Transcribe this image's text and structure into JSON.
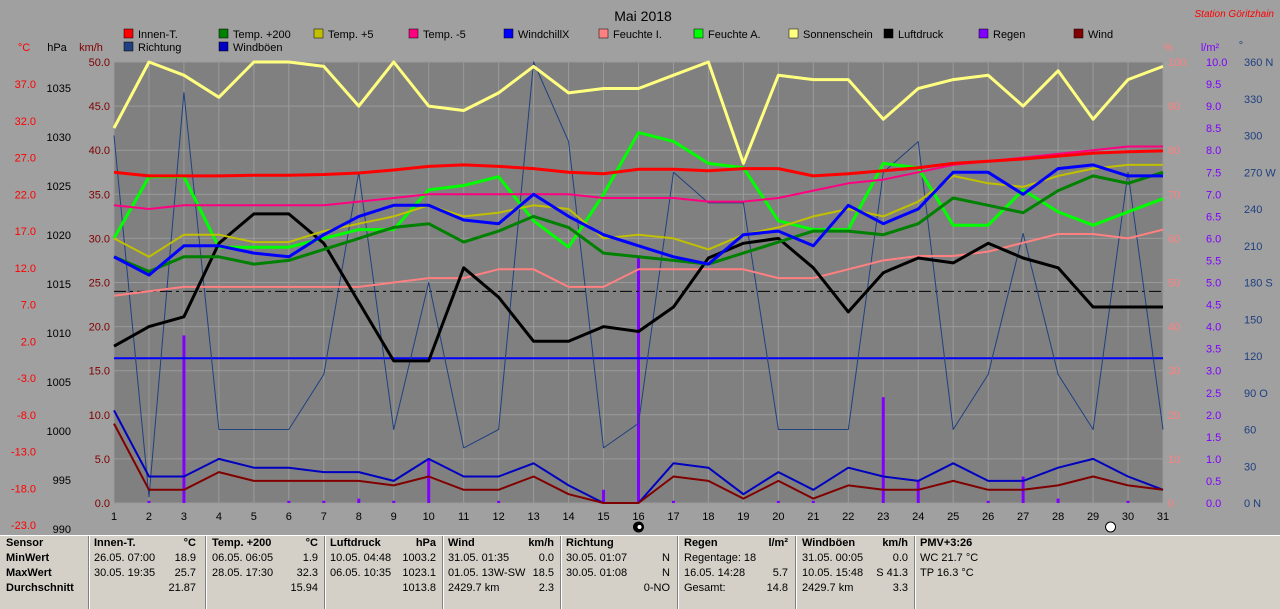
{
  "chart_data": {
    "type": "line",
    "title": "Mai 2018",
    "station": "Station Göritzhain",
    "axis_units": {
      "left_c": "°C",
      "left_hpa": "hPa",
      "left_kmh": "km/h",
      "right_pct": "%",
      "right_lm2": "l/m²",
      "right_deg": "°"
    },
    "x": [
      1,
      2,
      3,
      4,
      5,
      6,
      7,
      8,
      9,
      10,
      11,
      12,
      13,
      14,
      15,
      16,
      17,
      18,
      19,
      20,
      21,
      22,
      23,
      24,
      25,
      26,
      27,
      28,
      29,
      30,
      31
    ],
    "x_ticks": [
      "1",
      "2",
      "3",
      "4",
      "5",
      "6",
      "7",
      "8",
      "9",
      "10",
      "11",
      "12",
      "13",
      "14",
      "15",
      "16",
      "17",
      "18",
      "19",
      "20",
      "21",
      "22",
      "23",
      "24",
      "25",
      "26",
      "27",
      "28",
      "29",
      "30",
      "31"
    ],
    "temp_ticks": [
      "37.0",
      "32.0",
      "27.0",
      "22.0",
      "17.0",
      "12.0",
      "7.0",
      "2.0",
      "-3.0",
      "-8.0",
      "-13.0",
      "-18.0",
      "-23.0"
    ],
    "hpa_ticks": [
      "1035",
      "1030",
      "1025",
      "1020",
      "1015",
      "1010",
      "1005",
      "1000",
      "995",
      "990"
    ],
    "kmh_ticks": [
      "50.0",
      "45.0",
      "40.0",
      "35.0",
      "30.0",
      "25.0",
      "20.0",
      "15.0",
      "10.0",
      "5.0",
      "0.0"
    ],
    "pct_ticks": [
      "100",
      "90",
      "80",
      "70",
      "60",
      "50",
      "40",
      "30",
      "20",
      "10",
      "0"
    ],
    "rain_ticks": [
      "10.0",
      "9.5",
      "9.0",
      "8.5",
      "8.0",
      "7.5",
      "7.0",
      "6.5",
      "6.0",
      "5.5",
      "5.0",
      "4.5",
      "4.0",
      "3.5",
      "3.0",
      "2.5",
      "2.0",
      "1.5",
      "1.0",
      "0.5",
      "0.0"
    ],
    "dir_ticks": [
      "360 N",
      "330",
      "300",
      "270 W",
      "240",
      "210",
      "180 S",
      "150",
      "120",
      "90 O",
      "60",
      "30",
      "0 N"
    ],
    "ranges": {
      "temp": [
        -23,
        37
      ],
      "hpa": [
        990,
        1035
      ],
      "kmh": [
        0,
        50
      ],
      "pct": [
        0,
        100
      ],
      "rain": [
        0,
        10
      ],
      "dir": [
        0,
        360
      ]
    },
    "grid": true,
    "legend_position": "top",
    "series": [
      {
        "name": "Innen-T.",
        "key": "innen",
        "color": "#ff0000",
        "axis": "temp",
        "width": 3,
        "values": [
          22.0,
          21.5,
          21.5,
          21.5,
          21.6,
          21.6,
          21.7,
          21.9,
          22.3,
          22.8,
          23.0,
          22.8,
          22.5,
          22.0,
          21.8,
          22.4,
          22.4,
          22.2,
          22.5,
          22.5,
          21.5,
          21.8,
          22.2,
          22.6,
          23.2,
          23.5,
          23.8,
          24.2,
          24.6,
          24.8,
          24.9
        ]
      },
      {
        "name": "Temp. +200",
        "key": "t200",
        "color": "#008000",
        "axis": "temp",
        "width": 3,
        "values": [
          10.5,
          8.5,
          10.5,
          10.5,
          9.5,
          10.0,
          11.5,
          13.0,
          14.5,
          15.0,
          12.5,
          14.0,
          16.0,
          14.5,
          11.0,
          10.5,
          10.0,
          9.5,
          11.0,
          12.5,
          14.0,
          14.0,
          13.5,
          15.0,
          18.5,
          17.5,
          16.5,
          19.5,
          21.5,
          20.5,
          22.0
        ]
      },
      {
        "name": "Temp. +5",
        "key": "t5",
        "color": "#c0c000",
        "axis": "temp",
        "width": 2,
        "values": [
          13.0,
          10.5,
          13.5,
          13.5,
          12.5,
          12.5,
          14.0,
          15.0,
          16.0,
          17.5,
          16.0,
          16.5,
          17.5,
          17.0,
          13.0,
          13.5,
          13.0,
          11.5,
          13.5,
          14.5,
          16.0,
          17.0,
          16.0,
          18.0,
          21.5,
          20.5,
          20.0,
          21.5,
          22.5,
          23.0,
          23.0
        ]
      },
      {
        "name": "Temp. -5",
        "key": "tm5",
        "color": "#ff0080",
        "axis": "temp",
        "width": 2,
        "values": [
          17.5,
          17.0,
          17.5,
          17.5,
          17.5,
          17.5,
          17.5,
          18.0,
          18.5,
          19.0,
          19.0,
          19.0,
          19.0,
          19.0,
          18.5,
          18.5,
          18.5,
          18.0,
          18.0,
          18.5,
          19.5,
          20.5,
          21.0,
          22.0,
          23.0,
          23.5,
          24.0,
          24.5,
          25.0,
          25.5,
          25.5
        ]
      },
      {
        "name": "WindchillX",
        "key": "windchill",
        "color": "#0000ff",
        "axis": "temp",
        "width": 3,
        "values": [
          10.5,
          8.0,
          12.0,
          12.0,
          11.0,
          10.5,
          13.5,
          16.0,
          17.5,
          17.5,
          15.5,
          15.0,
          19.0,
          16.0,
          13.5,
          12.0,
          10.5,
          9.5,
          13.5,
          14.0,
          12.0,
          17.5,
          15.0,
          17.0,
          22.0,
          22.0,
          19.0,
          22.5,
          23.0,
          21.5,
          21.5
        ]
      },
      {
        "name": "Feuchte I.",
        "key": "feuchte_i",
        "color": "#ff8080",
        "axis": "pct",
        "width": 2,
        "values": [
          47,
          48,
          49,
          49,
          49,
          49,
          49,
          49,
          50,
          51,
          51,
          53,
          53,
          49,
          49,
          53,
          53,
          53,
          53,
          51,
          51,
          53,
          55,
          56,
          56,
          57,
          59,
          61,
          61,
          60,
          62
        ]
      },
      {
        "name": "Feuchte A.",
        "key": "feuchte_a",
        "color": "#00ff00",
        "axis": "pct",
        "width": 3,
        "values": [
          60,
          74,
          74,
          58,
          58,
          58,
          60,
          62,
          62,
          71,
          72,
          74,
          64,
          58,
          70,
          84,
          82,
          77,
          76,
          64,
          62,
          62,
          77,
          76,
          63,
          63,
          71,
          66,
          63,
          66,
          69
        ]
      },
      {
        "name": "Sonnenschein",
        "key": "sonne",
        "color": "#ffff80",
        "axis": "pct",
        "width": 3,
        "values": [
          85,
          100,
          97,
          92,
          100,
          100,
          99,
          90,
          100,
          90,
          89,
          93,
          99,
          93,
          94,
          94,
          97,
          100,
          77,
          97,
          96,
          96,
          87,
          94,
          96,
          97,
          90,
          98,
          87,
          96,
          99
        ]
      },
      {
        "name": "Luftdruck",
        "key": "luftdruck",
        "color": "#000000",
        "axis": "hpa",
        "width": 3,
        "values": [
          1006.0,
          1008.0,
          1009.0,
          1016.5,
          1019.5,
          1019.5,
          1016.5,
          1010.5,
          1004.5,
          1004.5,
          1014.0,
          1011.0,
          1006.5,
          1006.5,
          1008.0,
          1007.5,
          1010.0,
          1015.0,
          1016.5,
          1017.0,
          1014.0,
          1009.5,
          1013.5,
          1015.0,
          1014.5,
          1016.5,
          1015.0,
          1014.0,
          1010.0,
          1010.0,
          1010.0
        ]
      },
      {
        "name": "Regen",
        "key": "regen",
        "color": "#8000ff",
        "axis": "rain",
        "type": "bar",
        "width": 3,
        "values": [
          0.0,
          0.05,
          3.8,
          0.0,
          0.0,
          0.05,
          0.05,
          0.1,
          0.05,
          1.0,
          0.0,
          0.05,
          0.0,
          0.0,
          0.3,
          5.6,
          0.05,
          0.0,
          0.0,
          0.05,
          0.05,
          0.0,
          2.4,
          0.5,
          0.0,
          0.05,
          0.6,
          0.1,
          0.0,
          0.05,
          0.0
        ]
      },
      {
        "name": "Wind",
        "key": "wind",
        "color": "#800000",
        "axis": "kmh",
        "width": 2,
        "values": [
          9.0,
          1.5,
          1.5,
          3.5,
          2.5,
          2.5,
          2.5,
          2.5,
          2.0,
          3.0,
          1.5,
          1.5,
          3.0,
          1.0,
          0.0,
          0.0,
          3.0,
          2.5,
          0.5,
          2.5,
          0.5,
          2.0,
          1.5,
          1.5,
          2.5,
          1.5,
          1.5,
          2.0,
          3.0,
          2.0,
          1.5
        ]
      },
      {
        "name": "Richtung",
        "key": "richtung",
        "color": "#204080",
        "axis": "dir",
        "width": 1,
        "values": [
          300,
          5,
          335,
          60,
          60,
          60,
          105,
          270,
          60,
          180,
          45,
          60,
          360,
          295,
          45,
          65,
          270,
          245,
          245,
          60,
          60,
          60,
          270,
          295,
          60,
          105,
          220,
          105,
          60,
          270,
          60
        ]
      },
      {
        "name": "Windböen",
        "key": "windboeen",
        "color": "#0000c0",
        "axis": "kmh",
        "width": 2,
        "values": [
          10.5,
          3.0,
          3.0,
          5.0,
          4.0,
          4.0,
          3.5,
          3.5,
          2.5,
          5.0,
          3.0,
          3.0,
          4.5,
          2.0,
          0.0,
          0.0,
          4.5,
          4.0,
          1.0,
          3.5,
          1.5,
          4.0,
          3.0,
          2.5,
          4.5,
          2.5,
          2.5,
          4.0,
          5.0,
          3.0,
          1.5
        ]
      }
    ],
    "reference_lines": [
      {
        "name": "dashed",
        "color": "#000000",
        "style": "dashed",
        "axis": "temp",
        "value": 5.8
      },
      {
        "name": "windchill-ref",
        "color": "#0000ff",
        "style": "solid",
        "axis": "temp",
        "value": -3.3
      }
    ],
    "moon_phases": [
      {
        "day": 16,
        "phase": "new-moon"
      },
      {
        "day": 29.5,
        "phase": "full-moon"
      }
    ]
  },
  "stats": {
    "sensor": {
      "title": "Sensor",
      "rows": [
        "MinWert",
        "MaxWert",
        "Durchschnitt"
      ]
    },
    "innen": {
      "title": "Innen-T.",
      "unit": "°C",
      "min_ts": "26.05.  07:00",
      "min_val": "18.9",
      "max_ts": "30.05.  19:35",
      "max_val": "25.7",
      "avg": "21.87"
    },
    "temp": {
      "title": "Temp. +200",
      "unit": "°C",
      "min_ts": "06.05.  06:05",
      "min_val": "1.9",
      "max_ts": "28.05.  17:30",
      "max_val": "32.3",
      "avg": "15.94"
    },
    "luftdruck": {
      "title": "Luftdruck",
      "unit": "hPa",
      "min_ts": "10.05.  04:48",
      "min_val": "1003.2",
      "max_ts": "06.05.  10:35",
      "max_val": "1023.1",
      "avg": "1013.8"
    },
    "wind": {
      "title": "Wind",
      "unit": "km/h",
      "min_ts": "31.05.  01:35",
      "min_val": "0.0",
      "max_ts": "01.05.  13W-SW",
      "max_val": "18.5",
      "avg_label": "2429.7 km",
      "avg": "2.3"
    },
    "richtung": {
      "title": "Richtung",
      "min_ts": "30.05.  01:07",
      "min_val": "N",
      "max_ts": "30.05.  01:08",
      "max_val": "N",
      "avg": "0-NO"
    },
    "regen": {
      "title": "Regen",
      "unit": "l/m²",
      "row1": "Regentage: 18",
      "row2_ts": "16.05.  14:28",
      "row2_val": "5.7",
      "row3_label": "Gesamt:",
      "row3_val": "14.8"
    },
    "windboeen": {
      "title": "Windböen",
      "unit": "km/h",
      "min_ts": "31.05.  00:05",
      "min_val": "0.0",
      "max_ts": "10.05.  15:48",
      "max_val": "S 41.3",
      "avg_label": "2429.7 km",
      "avg": "3.3"
    },
    "pmv": {
      "title": "PMV+3:26",
      "row1": "WC 21.7 °C",
      "row2": "TP 16.3 °C"
    }
  }
}
